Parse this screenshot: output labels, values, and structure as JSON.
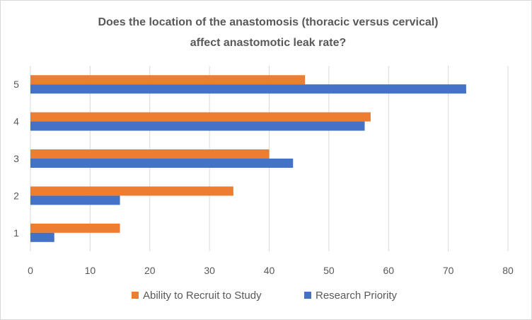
{
  "chart_data": {
    "type": "bar",
    "orientation": "horizontal",
    "title_lines": [
      "Does the location of the anastomosis (thoracic versus cervical)",
      "affect anastomotic leak rate?"
    ],
    "categories": [
      "1",
      "2",
      "3",
      "4",
      "5"
    ],
    "series": [
      {
        "name": "Ability to Recruit to Study",
        "color": "#ed7d31",
        "values": [
          15,
          34,
          40,
          57,
          46
        ]
      },
      {
        "name": "Research Priority",
        "color": "#4472c4",
        "values": [
          4,
          15,
          44,
          56,
          73
        ]
      }
    ],
    "xlim": [
      0,
      80
    ],
    "x_ticks": [
      0,
      10,
      20,
      30,
      40,
      50,
      60,
      70,
      80
    ],
    "grid": true,
    "legend_position": "bottom",
    "gridline_color": "#d9d9d9"
  }
}
